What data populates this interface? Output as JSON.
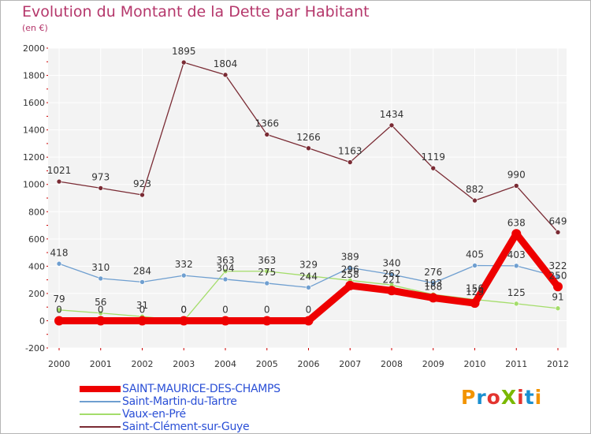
{
  "header": {
    "title": "Evolution du Montant de la Dette par Habitant",
    "unit": "(en €)"
  },
  "logo": {
    "text": "ProXiti",
    "letters": [
      "P",
      "r",
      "o",
      "X",
      "i",
      "t",
      "i"
    ],
    "colors": [
      "#f29400",
      "#1a8fd0",
      "#e3342f",
      "#7ab800",
      "#e3342f",
      "#1a8fd0",
      "#f29400"
    ]
  },
  "chart_data": {
    "type": "line",
    "x": [
      "2000",
      "2001",
      "2002",
      "2003",
      "2004",
      "2005",
      "2006",
      "2007",
      "2008",
      "2009",
      "2010",
      "2011",
      "2012"
    ],
    "ylim": [
      -200,
      2000
    ],
    "yticks": [
      "-200",
      "0",
      "200",
      "400",
      "600",
      "800",
      "1000",
      "1200",
      "1400",
      "1600",
      "1800",
      "2000"
    ],
    "grid": true,
    "legend_position": "bottom-left",
    "series": [
      {
        "name": "SAINT-MAURICE-DES-CHAMPS",
        "color": "#ee0000",
        "values": [
          0,
          0,
          0,
          0,
          0,
          0,
          0,
          258,
          221,
          168,
          129,
          638,
          250
        ],
        "labels": [
          "0",
          "0",
          "0",
          "0",
          "0",
          "0",
          "0",
          "258",
          "221",
          "168",
          "129",
          "638",
          "250"
        ]
      },
      {
        "name": "Saint-Martin-du-Tartre",
        "color": "#6f9fd0",
        "values": [
          418,
          310,
          284,
          332,
          304,
          275,
          244,
          389,
          340,
          276,
          405,
          403,
          322
        ],
        "labels": [
          "418",
          "310",
          "284",
          "332",
          "304",
          "275",
          "244",
          "389",
          "340",
          "276",
          "405",
          "403",
          "322"
        ]
      },
      {
        "name": "Vaux-en-Pré",
        "color": "#a4dd6a",
        "values": [
          79,
          56,
          31,
          0,
          363,
          363,
          329,
          296,
          262,
          193,
          156,
          125,
          91
        ],
        "labels": [
          "79",
          "56",
          "31",
          "0",
          "363",
          "363",
          "329",
          "296",
          "262",
          "193",
          "156",
          "125",
          "91"
        ]
      },
      {
        "name": "Saint-Clément-sur-Guye",
        "color": "#7a2b34",
        "values": [
          1021,
          973,
          923,
          1895,
          1804,
          1366,
          1266,
          1163,
          1434,
          1119,
          882,
          990,
          649
        ],
        "labels": [
          "1021",
          "973",
          "923",
          "1895",
          "1804",
          "1366",
          "1266",
          "1163",
          "1434",
          "1119",
          "882",
          "990",
          "649"
        ]
      }
    ]
  }
}
